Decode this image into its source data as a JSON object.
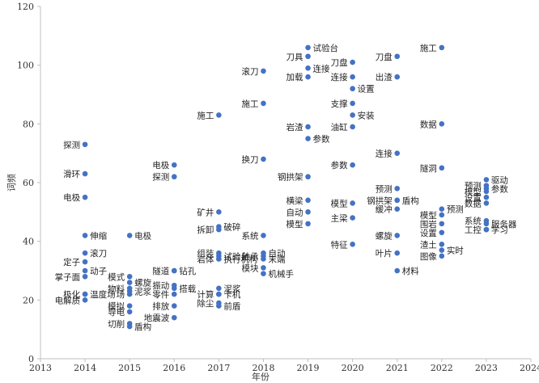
{
  "chart_data": {
    "type": "scatter",
    "title": "",
    "xlabel": "年份",
    "ylabel": "词频",
    "xlim": [
      2013,
      2024
    ],
    "ylim": [
      0,
      120
    ],
    "x_ticks": [
      "2013",
      "2014",
      "2015",
      "2016",
      "2017",
      "2018",
      "2019",
      "2020",
      "2021",
      "2022",
      "2023",
      "2024"
    ],
    "y_ticks": [
      "0",
      "20",
      "40",
      "60",
      "80",
      "100",
      "120"
    ],
    "grid": false,
    "legend": "none",
    "point_color": "#4472C4",
    "points": [
      {
        "x": 2014,
        "y": 73,
        "label": "探测",
        "side": "left"
      },
      {
        "x": 2014,
        "y": 63,
        "label": "滑环",
        "side": "left"
      },
      {
        "x": 2014,
        "y": 55,
        "label": "电极",
        "side": "left"
      },
      {
        "x": 2014,
        "y": 42,
        "label": "伸缩",
        "side": "right"
      },
      {
        "x": 2014,
        "y": 36,
        "label": "滚刀",
        "side": "right"
      },
      {
        "x": 2014,
        "y": 33,
        "label": "定子",
        "side": "left"
      },
      {
        "x": 2014,
        "y": 30,
        "label": "动子",
        "side": "right"
      },
      {
        "x": 2014,
        "y": 28,
        "label": "掌子面",
        "side": "left"
      },
      {
        "x": 2014,
        "y": 22,
        "label": "温度场",
        "side": "right"
      },
      {
        "x": 2014,
        "y": 22,
        "label": "极化",
        "side": "left"
      },
      {
        "x": 2014,
        "y": 20,
        "label": "电解质",
        "side": "left"
      },
      {
        "x": 2015,
        "y": 42,
        "label": "电极",
        "side": "right"
      },
      {
        "x": 2015,
        "y": 28,
        "label": "模式",
        "side": "left"
      },
      {
        "x": 2015,
        "y": 26,
        "label": "螺旋",
        "side": "right"
      },
      {
        "x": 2015,
        "y": 24,
        "label": "物料",
        "side": "left"
      },
      {
        "x": 2015,
        "y": 23,
        "label": "泥浆",
        "side": "right"
      },
      {
        "x": 2015,
        "y": 22,
        "label": "场",
        "side": "left"
      },
      {
        "x": 2015,
        "y": 18,
        "label": "模拟",
        "side": "left"
      },
      {
        "x": 2015,
        "y": 16,
        "label": "导电",
        "side": "left"
      },
      {
        "x": 2015,
        "y": 12,
        "label": "切削",
        "side": "left"
      },
      {
        "x": 2015,
        "y": 11,
        "label": "盾构",
        "side": "right"
      },
      {
        "x": 2016,
        "y": 66,
        "label": "电极",
        "side": "left"
      },
      {
        "x": 2016,
        "y": 62,
        "label": "探测",
        "side": "left"
      },
      {
        "x": 2016,
        "y": 30,
        "label": "隧道",
        "side": "left"
      },
      {
        "x": 2016,
        "y": 25,
        "label": "振动",
        "side": "left"
      },
      {
        "x": 2016,
        "y": 24,
        "label": "搭载",
        "side": "right"
      },
      {
        "x": 2016,
        "y": 22,
        "label": "零件",
        "side": "left"
      },
      {
        "x": 2016,
        "y": 18,
        "label": "排放",
        "side": "left"
      },
      {
        "x": 2016,
        "y": 14,
        "label": "地震波",
        "side": "left"
      },
      {
        "x": 2017,
        "y": 83,
        "label": "施工",
        "side": "left"
      },
      {
        "x": 2017,
        "y": 50,
        "label": "矿井",
        "side": "left"
      },
      {
        "x": 2017,
        "y": 45,
        "label": "破碎",
        "side": "right"
      },
      {
        "x": 2017,
        "y": 44,
        "label": "拆卸",
        "side": "left"
      },
      {
        "x": 2017,
        "y": 36,
        "label": "组装",
        "side": "left"
      },
      {
        "x": 2017,
        "y": 35,
        "label": "试验台",
        "side": "right"
      },
      {
        "x": 2017,
        "y": 34,
        "label": "岩体",
        "side": "left"
      },
      {
        "x": 2017,
        "y": 34,
        "label": "执行机构",
        "side": "right"
      },
      {
        "x": 2016,
        "y": 30,
        "label": "钻孔",
        "side": "right"
      },
      {
        "x": 2017,
        "y": 24,
        "label": "泥浆",
        "side": "right"
      },
      {
        "x": 2017,
        "y": 22,
        "label": "计算",
        "side": "left"
      },
      {
        "x": 2017,
        "y": 22,
        "label": "卡机",
        "side": "right"
      },
      {
        "x": 2017,
        "y": 19,
        "label": "除尘",
        "side": "left"
      },
      {
        "x": 2017,
        "y": 18,
        "label": "前盾",
        "side": "right"
      },
      {
        "x": 2018,
        "y": 98,
        "label": "滚刀",
        "side": "left"
      },
      {
        "x": 2018,
        "y": 87,
        "label": "施工",
        "side": "left"
      },
      {
        "x": 2018,
        "y": 68,
        "label": "换刀",
        "side": "left"
      },
      {
        "x": 2018,
        "y": 42,
        "label": "系统",
        "side": "left"
      },
      {
        "x": 2018,
        "y": 36,
        "label": "自动",
        "side": "right"
      },
      {
        "x": 2018,
        "y": 35,
        "label": "轴承",
        "side": "left"
      },
      {
        "x": 2018,
        "y": 34,
        "label": "末端",
        "side": "right"
      },
      {
        "x": 2018,
        "y": 31,
        "label": "模块",
        "side": "left"
      },
      {
        "x": 2018,
        "y": 29,
        "label": "机械手",
        "side": "right"
      },
      {
        "x": 2019,
        "y": 106,
        "label": "试验台",
        "side": "right"
      },
      {
        "x": 2019,
        "y": 103,
        "label": "刀具",
        "side": "left"
      },
      {
        "x": 2019,
        "y": 99,
        "label": "连接",
        "side": "right"
      },
      {
        "x": 2019,
        "y": 96,
        "label": "加载",
        "side": "left"
      },
      {
        "x": 2019,
        "y": 79,
        "label": "岩渣",
        "side": "left"
      },
      {
        "x": 2019,
        "y": 75,
        "label": "参数",
        "side": "right"
      },
      {
        "x": 2019,
        "y": 62,
        "label": "钢拱架",
        "side": "left"
      },
      {
        "x": 2019,
        "y": 54,
        "label": "横梁",
        "side": "left"
      },
      {
        "x": 2019,
        "y": 50,
        "label": "自动",
        "side": "left"
      },
      {
        "x": 2019,
        "y": 46,
        "label": "模型",
        "side": "left"
      },
      {
        "x": 2020,
        "y": 101,
        "label": "刀盘",
        "side": "left"
      },
      {
        "x": 2020,
        "y": 96,
        "label": "连接",
        "side": "left"
      },
      {
        "x": 2020,
        "y": 92,
        "label": "设置",
        "side": "right"
      },
      {
        "x": 2020,
        "y": 87,
        "label": "支撑",
        "side": "left"
      },
      {
        "x": 2020,
        "y": 83,
        "label": "安装",
        "side": "right"
      },
      {
        "x": 2020,
        "y": 79,
        "label": "油缸",
        "side": "left"
      },
      {
        "x": 2020,
        "y": 66,
        "label": "参数",
        "side": "left"
      },
      {
        "x": 2020,
        "y": 53,
        "label": "模型",
        "side": "left"
      },
      {
        "x": 2020,
        "y": 48,
        "label": "主梁",
        "side": "left"
      },
      {
        "x": 2020,
        "y": 39,
        "label": "特征",
        "side": "left"
      },
      {
        "x": 2021,
        "y": 103,
        "label": "刀盘",
        "side": "left"
      },
      {
        "x": 2021,
        "y": 96,
        "label": "出渣",
        "side": "left"
      },
      {
        "x": 2021,
        "y": 70,
        "label": "连接",
        "side": "left"
      },
      {
        "x": 2021,
        "y": 58,
        "label": "预测",
        "side": "left"
      },
      {
        "x": 2021,
        "y": 54,
        "label": "钢拱架",
        "side": "left"
      },
      {
        "x": 2021,
        "y": 54,
        "label": "盾构",
        "side": "right"
      },
      {
        "x": 2021,
        "y": 51,
        "label": "缓冲",
        "side": "left"
      },
      {
        "x": 2021,
        "y": 42,
        "label": "螺旋",
        "side": "left"
      },
      {
        "x": 2021,
        "y": 36,
        "label": "叶片",
        "side": "left"
      },
      {
        "x": 2021,
        "y": 30,
        "label": "材料",
        "side": "right"
      },
      {
        "x": 2022,
        "y": 106,
        "label": "施工",
        "side": "left"
      },
      {
        "x": 2022,
        "y": 80,
        "label": "数据",
        "side": "left"
      },
      {
        "x": 2022,
        "y": 65,
        "label": "隧洞",
        "side": "left"
      },
      {
        "x": 2022,
        "y": 51,
        "label": "预测",
        "side": "right"
      },
      {
        "x": 2022,
        "y": 49,
        "label": "模型",
        "side": "left"
      },
      {
        "x": 2022,
        "y": 46,
        "label": "围岩",
        "side": "left"
      },
      {
        "x": 2022,
        "y": 43,
        "label": "设置",
        "side": "left"
      },
      {
        "x": 2022,
        "y": 39,
        "label": "渣土",
        "side": "left"
      },
      {
        "x": 2022,
        "y": 37,
        "label": "实时",
        "side": "right"
      },
      {
        "x": 2022,
        "y": 35,
        "label": "图像",
        "side": "left"
      },
      {
        "x": 2023,
        "y": 61,
        "label": "驱动",
        "side": "right"
      },
      {
        "x": 2023,
        "y": 59,
        "label": "预测",
        "side": "left"
      },
      {
        "x": 2023,
        "y": 58,
        "label": "参数",
        "side": "right"
      },
      {
        "x": 2023,
        "y": 57,
        "label": "模型",
        "side": "left"
      },
      {
        "x": 2023,
        "y": 55,
        "label": "设置",
        "side": "left"
      },
      {
        "x": 2023,
        "y": 53,
        "label": "数据",
        "side": "left"
      },
      {
        "x": 2023,
        "y": 47,
        "label": "系统",
        "side": "left"
      },
      {
        "x": 2023,
        "y": 46,
        "label": "服务器",
        "side": "right"
      },
      {
        "x": 2023,
        "y": 44,
        "label": "工控",
        "side": "left"
      },
      {
        "x": 2023,
        "y": 44,
        "label": "学习",
        "side": "right"
      }
    ]
  }
}
